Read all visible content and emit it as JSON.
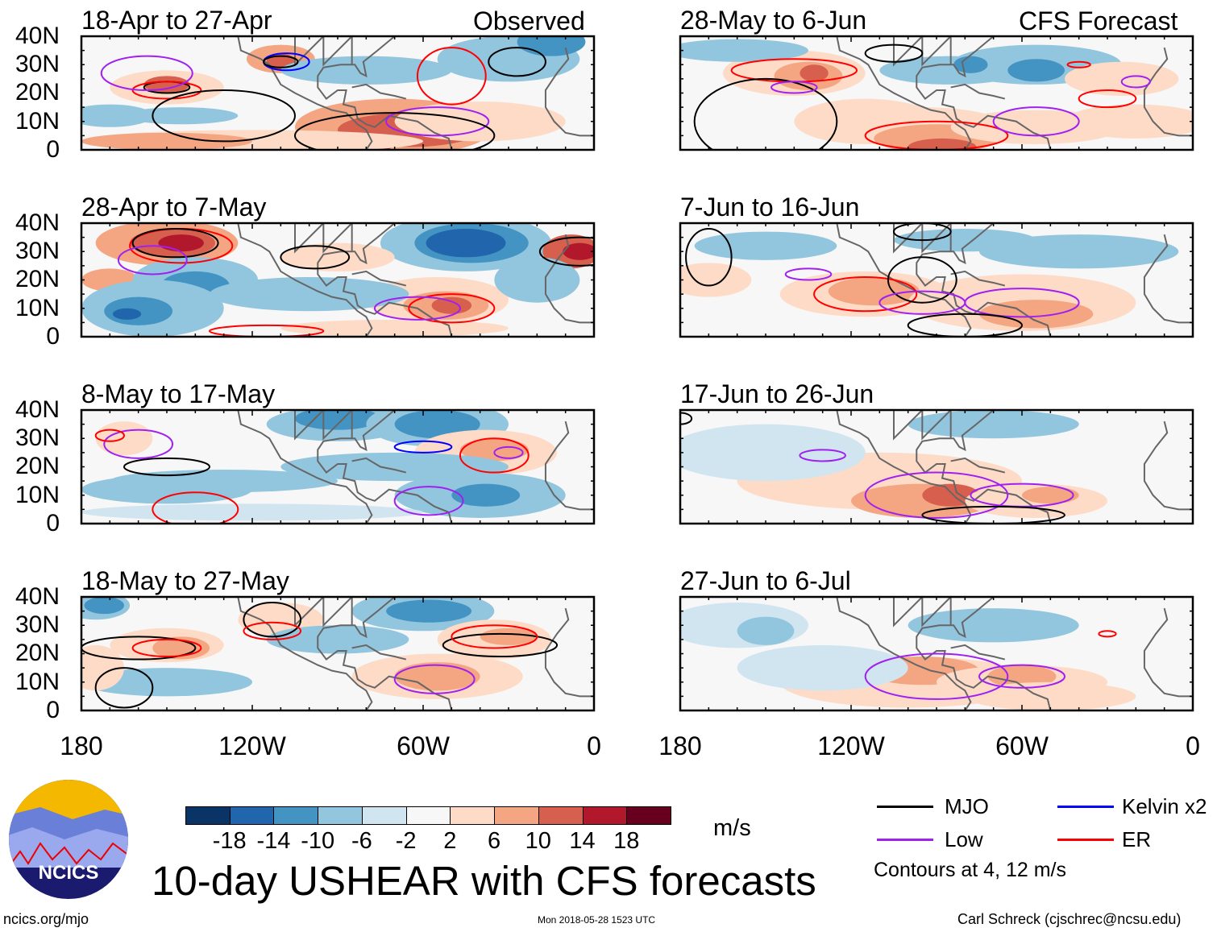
{
  "headers": {
    "observed": "Observed",
    "forecast": "CFS Forecast"
  },
  "chart_data": {
    "type": "heatmap",
    "title": "10-day USHEAR with CFS forecasts",
    "units": "m/s",
    "ytick_labels": [
      "40N",
      "30N",
      "20N",
      "10N",
      "0"
    ],
    "xtick_labels": [
      "180",
      "120W",
      "60W",
      "0"
    ],
    "lon_range": [
      -180,
      0
    ],
    "lat_range": [
      0,
      40
    ],
    "panels": [
      {
        "title": "18-Apr to 27-Apr",
        "source": "Observed"
      },
      {
        "title": "28-Apr to 7-May",
        "source": "Observed"
      },
      {
        "title": "8-May to 17-May",
        "source": "Observed"
      },
      {
        "title": "18-May to 27-May",
        "source": "Observed"
      },
      {
        "title": "28-May to 6-Jun",
        "source": "CFS Forecast"
      },
      {
        "title": "7-Jun to 16-Jun",
        "source": "CFS Forecast"
      },
      {
        "title": "17-Jun to 26-Jun",
        "source": "CFS Forecast"
      },
      {
        "title": "27-Jun to 6-Jul",
        "source": "CFS Forecast"
      }
    ],
    "colorbar": {
      "levels": [
        "-18",
        "-14",
        "-10",
        "-6",
        "-2",
        "2",
        "6",
        "10",
        "14",
        "18"
      ],
      "colors": [
        "#0a3366",
        "#2166ac",
        "#4393c3",
        "#92c5de",
        "#d1e5f0",
        "#f7f7f7",
        "#fddbc7",
        "#f4a582",
        "#d6604d",
        "#b2182b",
        "#67001f"
      ]
    },
    "legend": [
      {
        "label": "MJO",
        "color": "#000000"
      },
      {
        "label": "Kelvin x2",
        "color": "#0000ff"
      },
      {
        "label": "Low",
        "color": "#a020f0"
      },
      {
        "label": "ER",
        "color": "#ff0000"
      }
    ],
    "contour_note": "Contours at 4, 12 m/s"
  },
  "footer": {
    "logo_text": "NCICS",
    "url": "ncics.org/mjo",
    "timestamp": "Mon 2018-05-28 1523 UTC",
    "author": "Carl Schreck (cjschrec@ncsu.edu)"
  }
}
